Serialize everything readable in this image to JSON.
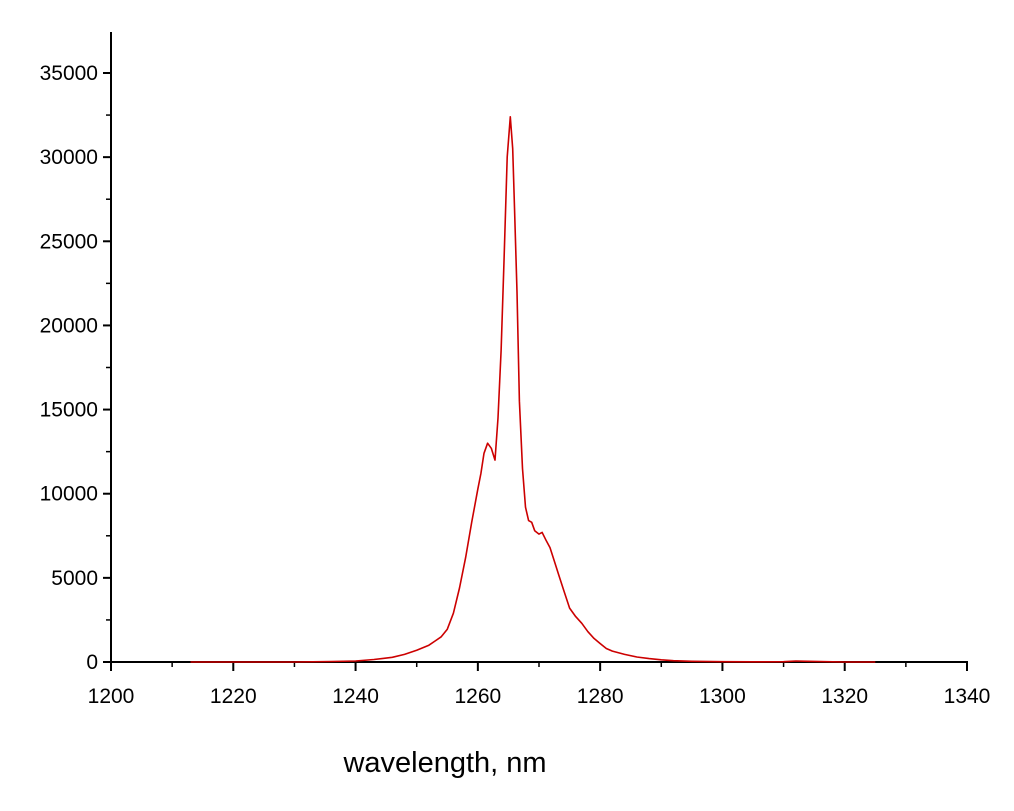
{
  "chart_data": {
    "type": "line",
    "title": "",
    "xlabel": "wavelength, nm",
    "ylabel": "",
    "xlim": [
      1200,
      1340
    ],
    "ylim": [
      0,
      37000
    ],
    "x_ticks": [
      1200,
      1220,
      1240,
      1260,
      1280,
      1300,
      1320,
      1340
    ],
    "y_ticks": [
      0,
      5000,
      10000,
      15000,
      20000,
      25000,
      30000,
      35000
    ],
    "grid": false,
    "legend": "none",
    "series": [
      {
        "color": "#cc0000",
        "x": [
          1213,
          1220,
          1230,
          1236,
          1240,
          1243,
          1246,
          1248,
          1250,
          1252,
          1253,
          1254,
          1255,
          1256,
          1257,
          1258,
          1259,
          1260,
          1260.5,
          1261,
          1261.6,
          1262.2,
          1262.8,
          1263.3,
          1263.8,
          1264.3,
          1264.8,
          1265.3,
          1265.7,
          1266,
          1266.4,
          1266.8,
          1267.3,
          1267.8,
          1268.3,
          1268.8,
          1269.3,
          1270,
          1270.5,
          1271.2,
          1271.8,
          1272.5,
          1273.2,
          1274,
          1275,
          1276,
          1277,
          1278,
          1279,
          1280,
          1281,
          1282,
          1284,
          1286,
          1288,
          1290,
          1292,
          1295,
          1300,
          1305,
          1310,
          1312,
          1314,
          1320,
          1325
        ],
        "y": [
          0,
          0,
          0,
          30,
          60,
          150,
          280,
          450,
          700,
          1000,
          1250,
          1500,
          1950,
          2900,
          4400,
          6200,
          8300,
          10300,
          11200,
          12400,
          13000,
          12700,
          12000,
          14500,
          18500,
          24000,
          30000,
          32400,
          30500,
          27000,
          22000,
          15500,
          11500,
          9200,
          8400,
          8300,
          7800,
          7600,
          7700,
          7200,
          6800,
          6000,
          5200,
          4300,
          3200,
          2700,
          2300,
          1800,
          1400,
          1100,
          800,
          650,
          450,
          300,
          200,
          130,
          80,
          40,
          20,
          10,
          20,
          60,
          40,
          0,
          0
        ]
      }
    ]
  }
}
